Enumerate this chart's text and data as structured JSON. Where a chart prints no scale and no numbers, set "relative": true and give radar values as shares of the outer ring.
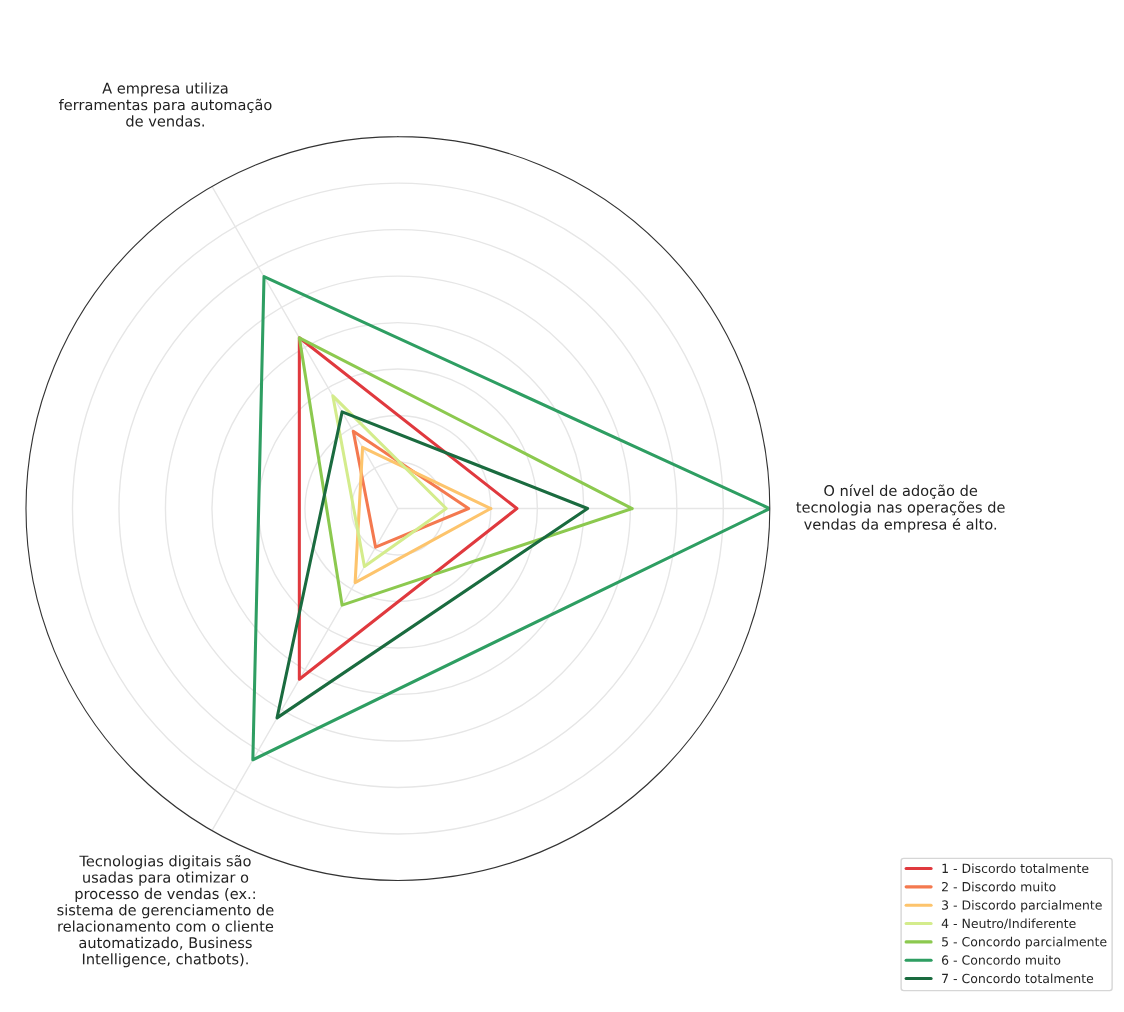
{
  "chart_data": {
    "type": "radar",
    "relative": true,
    "legend": "bottom right",
    "grid": true,
    "categories": [
      "O nível de adoção de\ntecnologia nas operações de\nvendas da empresa é alto.",
      "Tecnologias digitais são\nusadas para otimizar o\nprocesso de vendas (ex.:\nsistema de gerenciamento de\nrelacionamento com o cliente\nautomatizado, Business\nIntelligence, chatbots).",
      "A empresa utiliza\nferramentas para automação\nde vendas."
    ],
    "series": [
      {
        "name": "1 - Discordo totalmente",
        "color": "#e0393e",
        "values": [
          0.32,
          0.53,
          0.53
        ]
      },
      {
        "name": "2 - Discordo muito",
        "color": "#f4794f",
        "values": [
          0.19,
          0.12,
          0.24
        ]
      },
      {
        "name": "3 - Discordo parcialmente",
        "color": "#fdc46c",
        "values": [
          0.25,
          0.23,
          0.19
        ]
      },
      {
        "name": "4 - Neutro/Indiferente",
        "color": "#d4ec8c",
        "values": [
          0.13,
          0.18,
          0.35
        ]
      },
      {
        "name": "5 - Concordo parcialmente",
        "color": "#8cc94f",
        "values": [
          0.63,
          0.3,
          0.53
        ]
      },
      {
        "name": "6 - Concordo muito",
        "color": "#2e9e62",
        "values": [
          1.0,
          0.78,
          0.72
        ]
      },
      {
        "name": "7 - Concordo totalmente",
        "color": "#1a6b3f",
        "values": [
          0.51,
          0.65,
          0.3
        ]
      }
    ]
  }
}
